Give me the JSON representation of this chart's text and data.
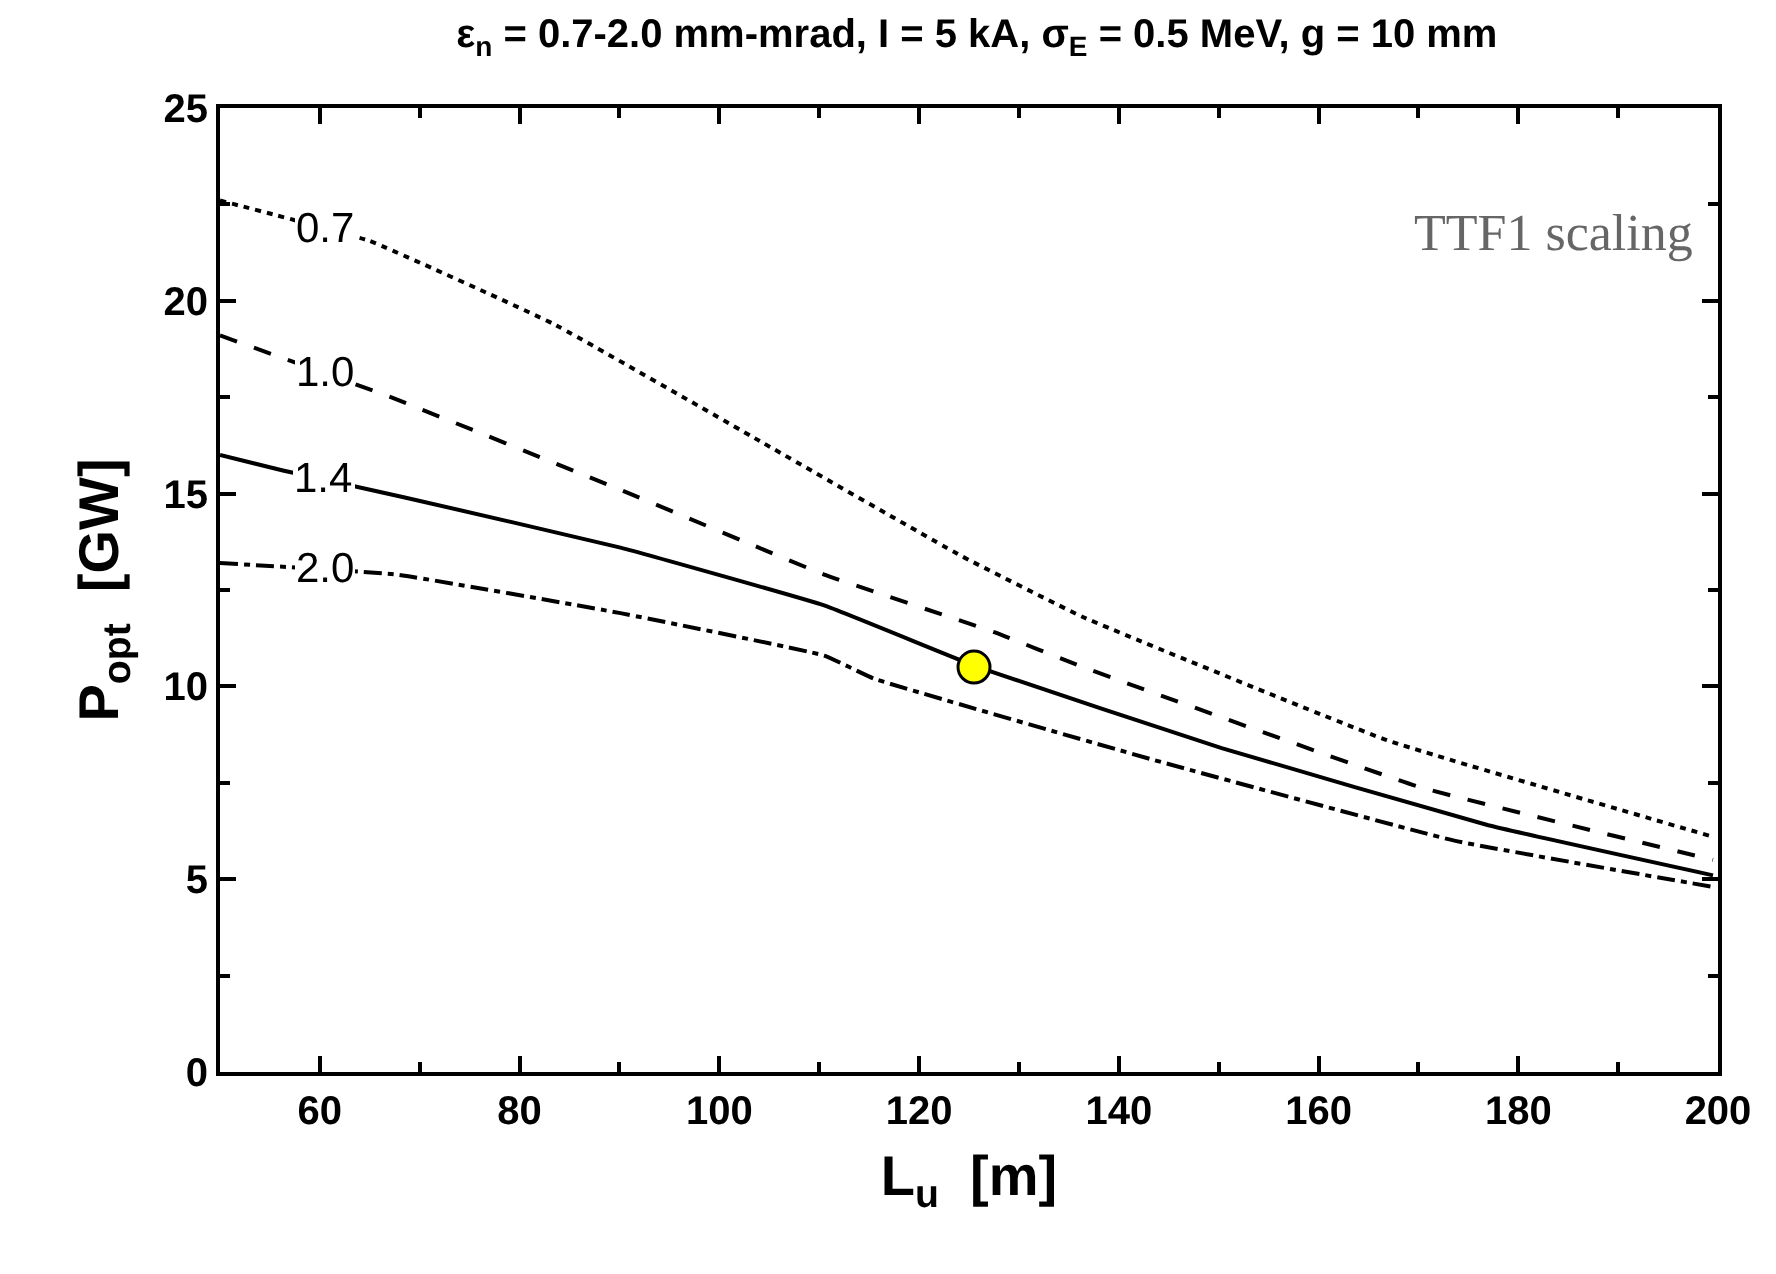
{
  "chart_data": {
    "type": "line",
    "title": "ε$_{n}$ = 0.7-2.0 mm-mrad, I = 5 kA, σ$_{E}$ = 0.5 MeV, g = 10 mm",
    "xlabel": "L$_{u}$  [m]",
    "ylabel": "P$_{opt}$  [GW]",
    "xlim": [
      50,
      200
    ],
    "xticks": [
      60,
      80,
      100,
      120,
      140,
      160,
      180,
      200
    ],
    "ylim": [
      0,
      25
    ],
    "yticks": [
      0,
      5,
      10,
      15,
      20,
      25
    ],
    "grid": false,
    "legend": false,
    "marker": "none",
    "annotations": [
      "TTF1 scaling"
    ],
    "series": [
      {
        "name": "0.7",
        "color": "#000000",
        "line_style": "dotted",
        "x": [
          50,
          65,
          83.4,
          103.8,
          124.1,
          136.4,
          166.9,
          199.5
        ],
        "values": [
          22.6,
          21.55,
          19.4,
          16.4,
          13.4,
          11.8,
          8.6,
          6.1
        ]
      },
      {
        "name": "1.0",
        "color": "#000000",
        "line_style": "dashed",
        "x": [
          50,
          67.1,
          90.1,
          110.5,
          127.6,
          136.4,
          170,
          199.5
        ],
        "values": [
          19.1,
          17.5,
          15.1,
          12.9,
          11.4,
          10.5,
          7.4,
          5.5
        ]
      },
      {
        "name": "1.4",
        "color": "#000000",
        "line_style": "solid",
        "x": [
          50,
          56.3,
          68.5,
          90.1,
          110.5,
          125.9,
          150.3,
          177,
          199.5
        ],
        "values": [
          16.0,
          15.6,
          14.9,
          13.6,
          12.1,
          10.5,
          8.4,
          6.4,
          5.1
        ]
      },
      {
        "name": "2.0",
        "color": "#000000",
        "line_style": "dashdot",
        "x": [
          50,
          67.7,
          90.1,
          110.5,
          115.5,
          143.4,
          173.6,
          199.5
        ],
        "values": [
          13.2,
          12.9,
          11.9,
          10.8,
          10.2,
          8.1,
          6.0,
          4.8
        ]
      },
      {
        "type": "scatter",
        "marker": "circle",
        "color": "#ffff00",
        "x": [
          125.5
        ],
        "values": [
          10.5
        ]
      }
    ]
  }
}
